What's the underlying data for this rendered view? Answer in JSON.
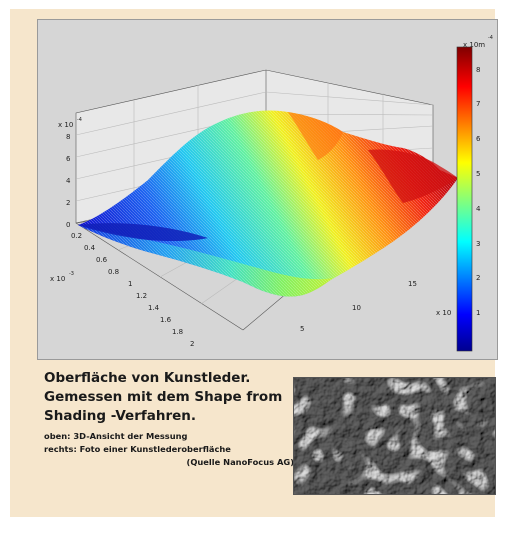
{
  "plot": {
    "z_exp_label": "x 10",
    "z_exp_power": "-4",
    "y_exp_label": "x 10",
    "y_exp_power": "-3",
    "x_exp_label": "x 10",
    "z_ticks": [
      "0",
      "2",
      "4",
      "6",
      "8"
    ],
    "y_ticks": [
      "0.2",
      "0.4",
      "0.6",
      "0.8",
      "1",
      "1.2",
      "1.4",
      "1.6",
      "1.8",
      "2"
    ],
    "x_ticks": [
      "5",
      "10",
      "15"
    ],
    "colorbar_exp_label": "x 10m",
    "colorbar_exp_power": "-4",
    "colorbar_ticks": [
      "1",
      "2",
      "3",
      "4",
      "5",
      "6",
      "7",
      "8"
    ],
    "colormap": "jet"
  },
  "caption": {
    "title_line1": "Oberfläche von Kunstleder.",
    "title_line2": "Gemessen mit dem Shape from",
    "title_line3": "Shading -Verfahren.",
    "note_line1": "oben: 3D-Ansicht der Messung",
    "note_line2": "rechts: Foto einer Kunstlederoberfläche",
    "source": "(Quelle NanoFocus AG)"
  },
  "colors": {
    "panel_bg": "#f6e6cc",
    "plot_bg": "#d6d6d6",
    "text": "#1a1a1a"
  },
  "photo": {
    "description_icon": "leather-texture-photo"
  }
}
